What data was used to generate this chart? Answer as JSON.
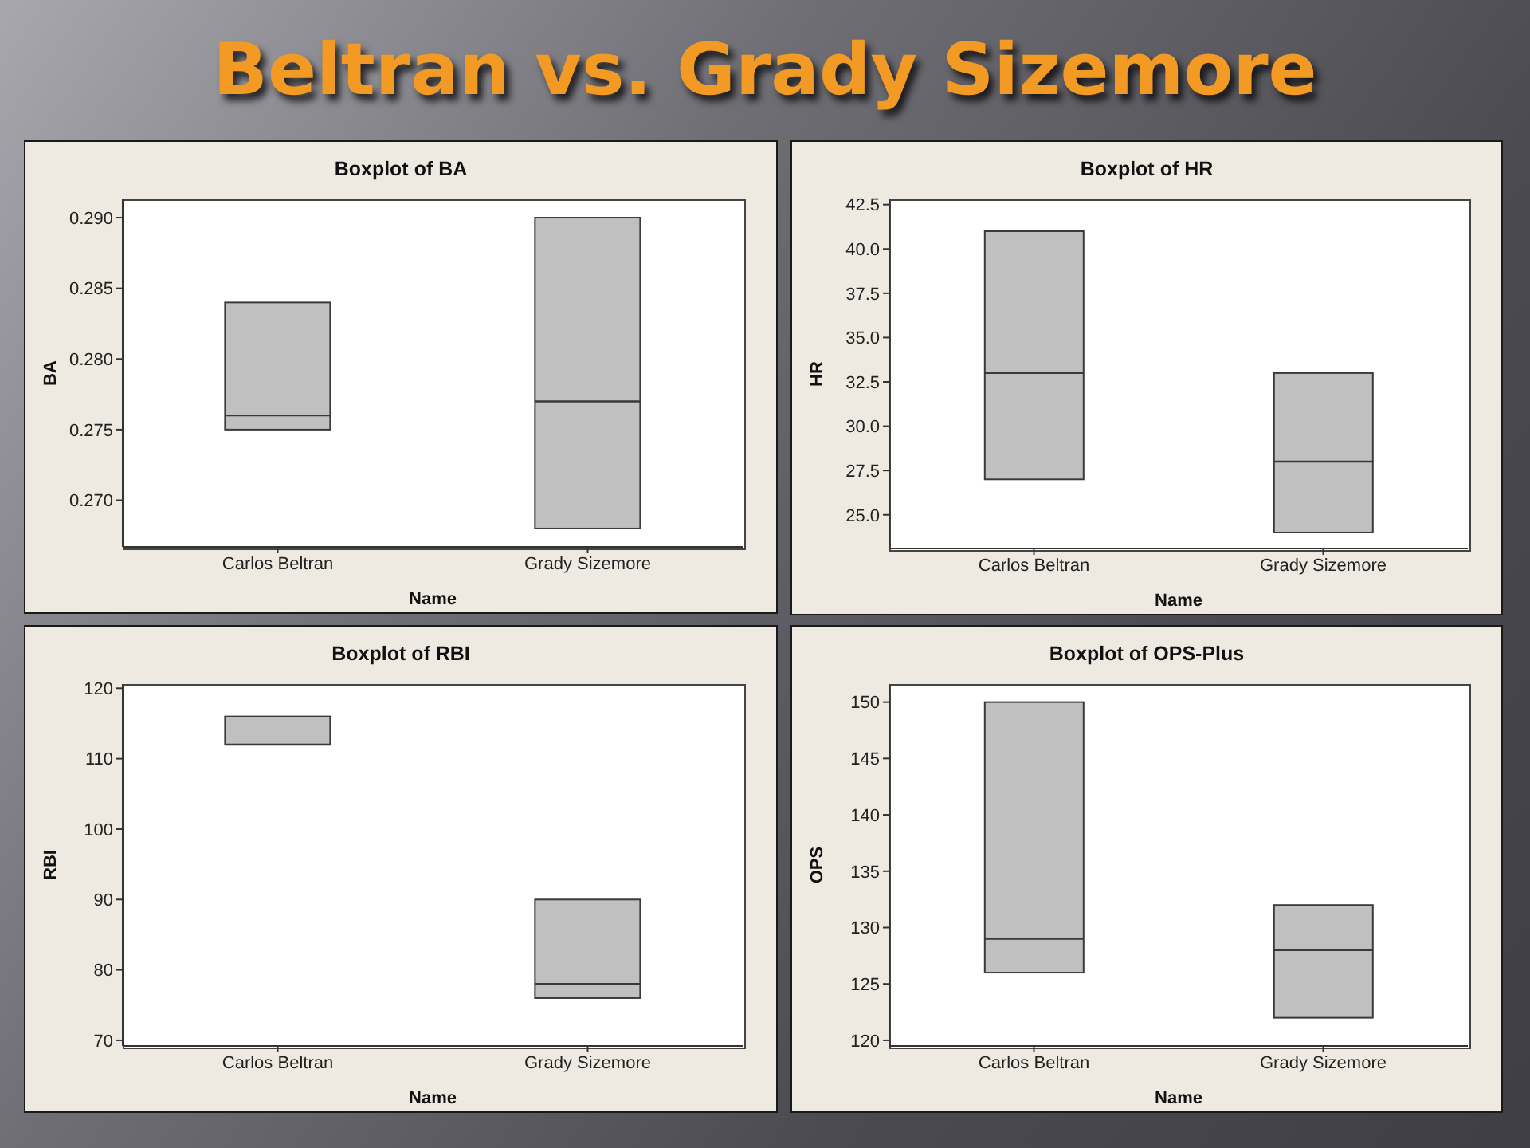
{
  "chart_data": [
    {
      "type": "other",
      "title": "Beltran vs. Grady Sizemore"
    },
    {
      "type": "box",
      "title": "Boxplot of BA",
      "xlabel": "Name",
      "ylabel": "BA",
      "categories": [
        "Carlos Beltran",
        "Grady Sizemore"
      ],
      "boxes": [
        {
          "low": 0.275,
          "q1": 0.275,
          "median": 0.276,
          "q3": 0.284,
          "high": 0.284
        },
        {
          "low": 0.268,
          "q1": 0.268,
          "median": 0.277,
          "q3": 0.29,
          "high": 0.29
        }
      ],
      "color": "#c0c0c0",
      "ylim": [
        0.2667,
        0.2913
      ],
      "yticks": [
        {
          "value": 0.27,
          "label": "0.270"
        },
        {
          "value": 0.275,
          "label": "0.275"
        },
        {
          "value": 0.28,
          "label": "0.280"
        },
        {
          "value": 0.285,
          "label": "0.285"
        },
        {
          "value": 0.29,
          "label": "0.290"
        }
      ]
    },
    {
      "type": "box",
      "title": "Boxplot of HR",
      "xlabel": "Name",
      "ylabel": "HR",
      "categories": [
        "Carlos Beltran",
        "Grady Sizemore"
      ],
      "boxes": [
        {
          "low": 27,
          "q1": 27,
          "median": 33,
          "q3": 41,
          "high": 41
        },
        {
          "low": 24,
          "q1": 24,
          "median": 28,
          "q3": 33,
          "high": 33
        }
      ],
      "color": "#c0c0c0",
      "ylim": [
        23.1,
        42.8
      ],
      "yticks": [
        {
          "value": 25,
          "label": "25.0"
        },
        27.5,
        {
          "value": 30,
          "label": "30.0"
        },
        32.5,
        {
          "value": 35,
          "label": "35.0"
        },
        37.5,
        {
          "value": 40,
          "label": "40.0"
        },
        42.5
      ]
    },
    {
      "type": "box",
      "title": "Boxplot of RBI",
      "xlabel": "Name",
      "ylabel": "RBI",
      "categories": [
        "Carlos Beltran",
        "Grady Sizemore"
      ],
      "boxes": [
        {
          "low": 112,
          "q1": 112,
          "median": 112,
          "q3": 116,
          "high": 116
        },
        {
          "low": 76,
          "q1": 76,
          "median": 78,
          "q3": 90,
          "high": 90
        }
      ],
      "color": "#c0c0c0",
      "ylim": [
        69.2,
        120.6
      ],
      "yticks": [
        70,
        80,
        90,
        100,
        110,
        120
      ]
    },
    {
      "type": "box",
      "title": "Boxplot of OPS-Plus",
      "xlabel": "Name",
      "ylabel": "OPS",
      "categories": [
        "Carlos Beltran",
        "Grady Sizemore"
      ],
      "boxes": [
        {
          "low": 126,
          "q1": 126,
          "median": 129,
          "q3": 150,
          "high": 150
        },
        {
          "low": 122,
          "q1": 122,
          "median": 128,
          "q3": 132,
          "high": 132
        }
      ],
      "color": "#c0c0c0",
      "ylim": [
        119.5,
        151.6
      ],
      "yticks": [
        120,
        125,
        130,
        135,
        140,
        145,
        150
      ]
    }
  ]
}
